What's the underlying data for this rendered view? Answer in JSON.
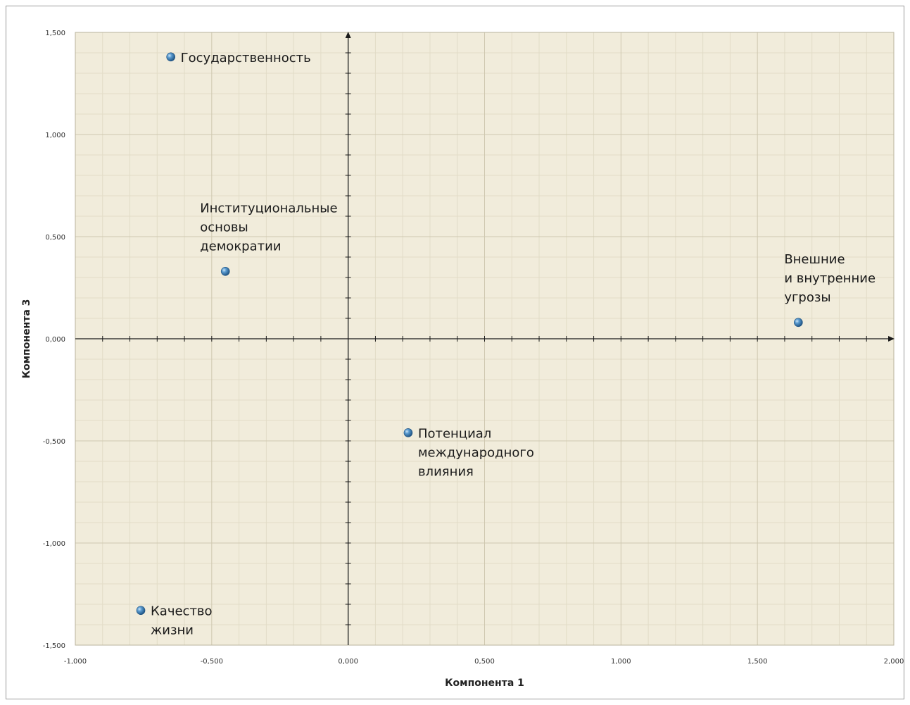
{
  "chart_data": {
    "type": "scatter",
    "xlabel": "Компонента 1",
    "ylabel": "Компонента 3",
    "xlim": [
      -1.0,
      2.0
    ],
    "ylim": [
      -1.5,
      1.5
    ],
    "x_ticks": [
      "-1,000",
      "-0,500",
      "0,000",
      "0,500",
      "1,000",
      "1,500",
      "2,000"
    ],
    "y_ticks": [
      "1,500",
      "1,000",
      "0,500",
      "0,000",
      "-0,500",
      "-1,000",
      "-1,500"
    ],
    "grid": true,
    "background_color": "#f1ecdb",
    "marker_color": "#2b6aa0",
    "points": [
      {
        "label": [
          "Государственность"
        ],
        "x": -0.65,
        "y": 1.38
      },
      {
        "label": [
          "Институциональные",
          "основы",
          "демократии"
        ],
        "x": -0.45,
        "y": 0.33
      },
      {
        "label": [
          "Внешние",
          "и внутренние",
          "угрозы"
        ],
        "x": 1.65,
        "y": 0.08
      },
      {
        "label": [
          "Потенциал",
          "международного",
          "влияния"
        ],
        "x": 0.22,
        "y": -0.46
      },
      {
        "label": [
          "Качество",
          "жизни"
        ],
        "x": -0.76,
        "y": -1.33
      }
    ]
  }
}
